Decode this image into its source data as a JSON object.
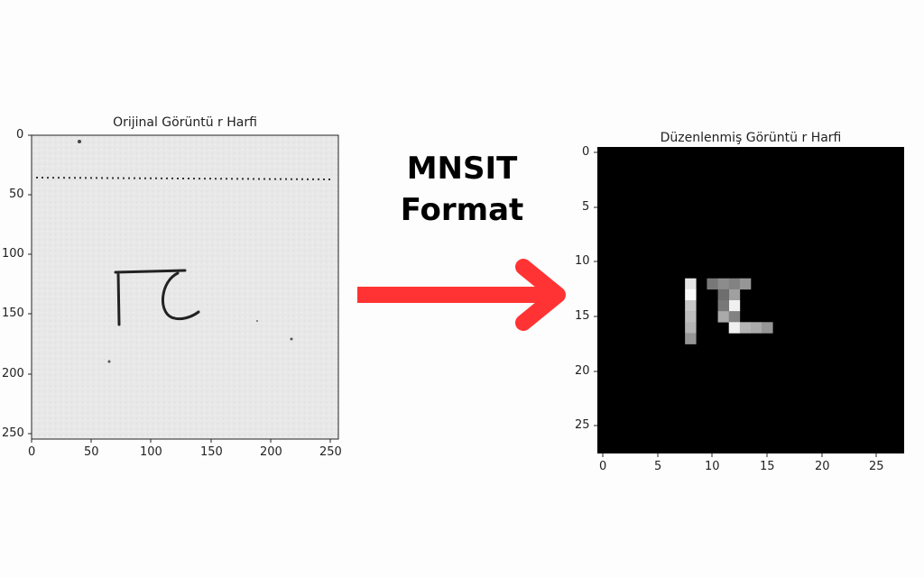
{
  "left_panel": {
    "title": "Orijinal Görüntü r Harfi",
    "x_ticks": [
      "0",
      "50",
      "100",
      "150",
      "200",
      "250"
    ],
    "y_ticks": [
      "0",
      "50",
      "100",
      "150",
      "200",
      "250"
    ]
  },
  "center": {
    "line1": "MNSIT",
    "line2": "Format",
    "arrow_color": "#ff3333"
  },
  "right_panel": {
    "title": "Düzenlenmiş Görüntü r Harfi",
    "x_ticks": [
      "0",
      "5",
      "10",
      "15",
      "20",
      "25"
    ],
    "y_ticks": [
      "0",
      "5",
      "10",
      "15",
      "20",
      "25"
    ]
  },
  "pixel_grid": {
    "size": 28,
    "pixels": [
      [
        12,
        8,
        230
      ],
      [
        13,
        8,
        250
      ],
      [
        14,
        8,
        200
      ],
      [
        15,
        8,
        190
      ],
      [
        16,
        8,
        180
      ],
      [
        17,
        8,
        150
      ],
      [
        12,
        10,
        120
      ],
      [
        12,
        11,
        140
      ],
      [
        12,
        12,
        130
      ],
      [
        12,
        13,
        150
      ],
      [
        13,
        12,
        160
      ],
      [
        13,
        11,
        110
      ],
      [
        14,
        12,
        240
      ],
      [
        14,
        11,
        120
      ],
      [
        15,
        11,
        170
      ],
      [
        15,
        12,
        130
      ],
      [
        16,
        12,
        240
      ],
      [
        16,
        13,
        180
      ],
      [
        16,
        14,
        170
      ],
      [
        16,
        15,
        150
      ]
    ]
  }
}
